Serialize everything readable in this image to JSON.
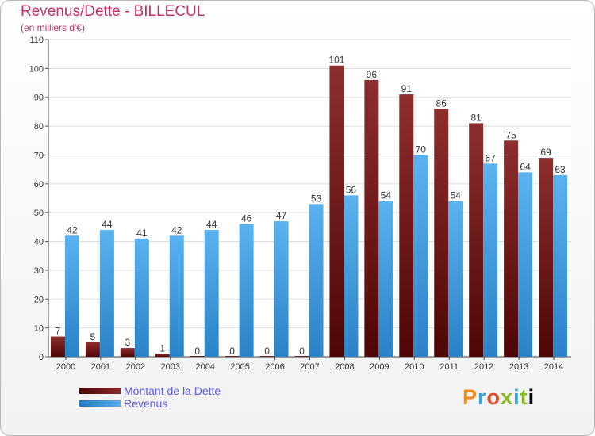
{
  "chart_data": {
    "type": "bar",
    "title": "Revenus/Dette - BILLECUL",
    "subtitle": "(en milliers d'€)",
    "categories": [
      "2000",
      "2001",
      "2002",
      "2003",
      "2004",
      "2005",
      "2006",
      "2007",
      "2008",
      "2009",
      "2010",
      "2011",
      "2012",
      "2013",
      "2014"
    ],
    "series": [
      {
        "name": "Montant de la Dette",
        "color": "#7a1a1a",
        "values": [
          7,
          5,
          3,
          1,
          0,
          0,
          0,
          0,
          101,
          96,
          91,
          86,
          81,
          75,
          69
        ]
      },
      {
        "name": "Revenus",
        "color": "#4aa3e8",
        "values": [
          42,
          44,
          41,
          42,
          44,
          46,
          47,
          53,
          56,
          54,
          70,
          54,
          67,
          64,
          63
        ]
      }
    ],
    "ylim": [
      0,
      110
    ],
    "yticks": [
      0,
      10,
      20,
      30,
      40,
      50,
      60,
      70,
      80,
      90,
      100,
      110
    ],
    "grid": true,
    "legend_position": "bottom-left"
  },
  "logo": {
    "letters": [
      "P",
      "r",
      "o",
      "x",
      "i",
      "t",
      "i"
    ]
  }
}
